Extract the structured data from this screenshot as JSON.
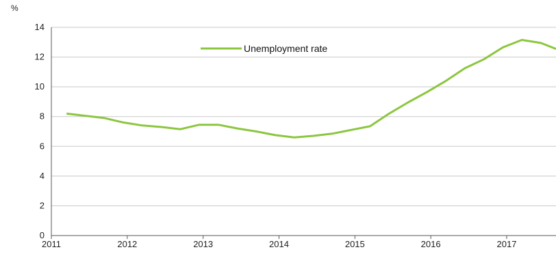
{
  "chart_data": {
    "type": "line",
    "title": "",
    "ylabel": "%",
    "xlabel": "",
    "ylim": [
      0,
      14
    ],
    "yticks": [
      0,
      2,
      4,
      6,
      8,
      10,
      12,
      14
    ],
    "xlim": [
      2011,
      2017.65
    ],
    "xticks": [
      "2011",
      "2012",
      "2013",
      "2014",
      "2015",
      "2016",
      "2017"
    ],
    "grid": "horizontal",
    "legend_position": "top",
    "series": [
      {
        "name": "Unemployment rate",
        "color": "#8cc63f",
        "x": [
          2011.2,
          2011.45,
          2011.7,
          2011.95,
          2012.2,
          2012.45,
          2012.7,
          2012.95,
          2013.2,
          2013.45,
          2013.7,
          2013.95,
          2014.2,
          2014.45,
          2014.7,
          2014.95,
          2015.2,
          2015.45,
          2015.7,
          2015.95,
          2016.2,
          2016.45,
          2016.7,
          2016.95,
          2017.2,
          2017.45,
          2017.65
        ],
        "y": [
          8.2,
          8.05,
          7.9,
          7.6,
          7.4,
          7.3,
          7.15,
          7.45,
          7.45,
          7.2,
          7.0,
          6.75,
          6.6,
          6.7,
          6.85,
          7.1,
          7.35,
          8.2,
          8.95,
          9.65,
          10.4,
          11.25,
          11.85,
          12.65,
          13.15,
          12.95,
          12.55
        ]
      }
    ]
  }
}
